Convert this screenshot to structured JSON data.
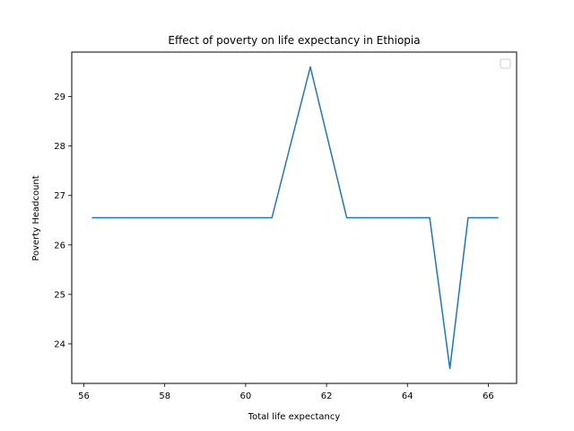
{
  "chart_data": {
    "type": "line",
    "title": "Effect of poverty on life expectancy in Ethiopia",
    "xlabel": "Total life expectancy",
    "ylabel": "Poverty Headcount",
    "xlim": [
      55.7,
      66.7
    ],
    "ylim": [
      23.2,
      29.9
    ],
    "xticks": [
      56,
      58,
      60,
      62,
      64,
      66
    ],
    "yticks": [
      24,
      25,
      26,
      27,
      28,
      29
    ],
    "grid": false,
    "legend": {
      "placement": "top-right",
      "entries": []
    },
    "series": [
      {
        "color": "#1f77b4",
        "x": [
          56.2,
          60.65,
          61.6,
          62.5,
          64.55,
          65.05,
          65.5,
          66.25
        ],
        "y": [
          26.55,
          26.55,
          29.6,
          26.55,
          26.55,
          23.5,
          26.55,
          26.55
        ]
      }
    ]
  }
}
